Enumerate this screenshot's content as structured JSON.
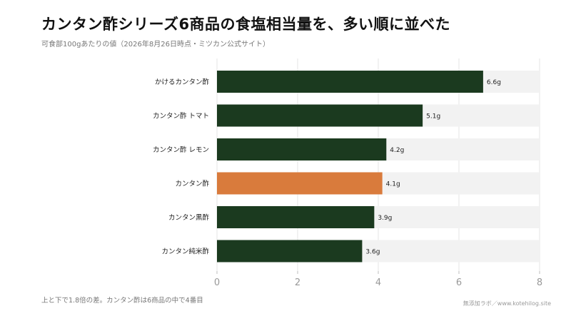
{
  "title": "カンタン酢シリーズ6商品の食塩相当量を、多い順に並べた",
  "subtitle": "可食部100gあたりの値（2026年8月26日時点・ミツカン公式サイト）",
  "footnote": "上と下で1.8倍の差。カンタン酢は6商品の中で4番目",
  "source": "無添加ラボ／www.kotehilog.site",
  "colors": {
    "bar": "#1b3a1f",
    "highlight": "#d97b3c",
    "track": "#f2f2f2",
    "grid": "#e6e6e6"
  },
  "chart_data": {
    "type": "bar",
    "orientation": "horizontal",
    "categories": [
      "かけるカンタン酢",
      "カンタン酢 トマト",
      "カンタン酢 レモン",
      "カンタン酢",
      "カンタン黒酢",
      "カンタン純米酢"
    ],
    "values": [
      6.6,
      5.1,
      4.2,
      4.1,
      3.9,
      3.6
    ],
    "value_labels": [
      "6.6g",
      "5.1g",
      "4.2g",
      "4.1g",
      "3.9g",
      "3.6g"
    ],
    "highlight": "カンタン酢",
    "xlim": [
      0,
      8
    ],
    "xticks": [
      0,
      2,
      4,
      6,
      8
    ],
    "grid": true
  }
}
